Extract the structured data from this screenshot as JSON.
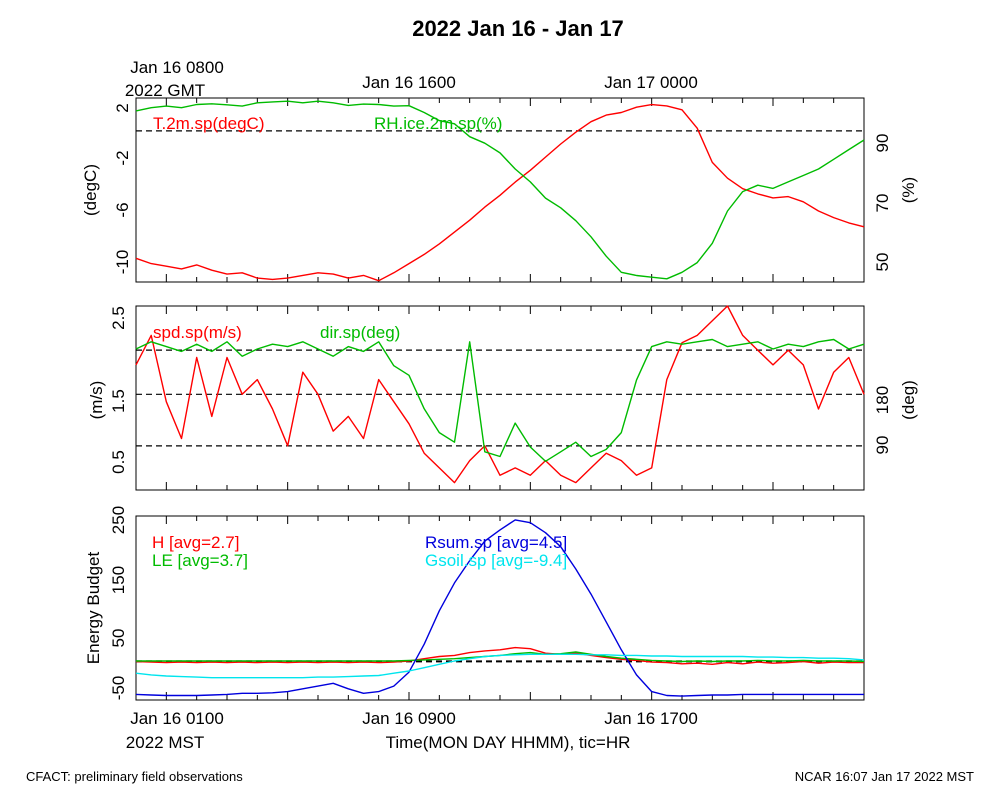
{
  "title": "2022 Jan 16 - Jan 17",
  "gmt_axis": {
    "ticks": [
      {
        "label": "Jan 16 0800",
        "sub": "2022 GMT"
      },
      {
        "label": "Jan 16 1600",
        "sub": ""
      },
      {
        "label": "Jan 17 0000",
        "sub": ""
      }
    ]
  },
  "mst_axis": {
    "ticks": [
      {
        "label": "Jan 16 0100",
        "sub": "2022 MST"
      },
      {
        "label": "Jan 16 0900",
        "sub": ""
      },
      {
        "label": "Jan 16 1700",
        "sub": ""
      }
    ],
    "xlabel": "Time(MON DAY HHMM), tic=HR"
  },
  "footer": {
    "left": "CFACT: preliminary field observations",
    "right": "NCAR 16:07 Jan 17 2022 MST"
  },
  "chart_data": [
    {
      "type": "line",
      "id": "temp-rh",
      "x_hours_mst": [
        0.0,
        0.5,
        1.0,
        1.5,
        2.0,
        2.5,
        3.0,
        3.5,
        4.0,
        4.5,
        5.0,
        5.5,
        6.0,
        6.5,
        7.0,
        7.5,
        8.0,
        8.5,
        9.0,
        9.5,
        10.0,
        10.5,
        11.0,
        11.5,
        12.0,
        12.5,
        13.0,
        13.5,
        14.0,
        14.5,
        15.0,
        15.5,
        16.0,
        16.5,
        17.0,
        17.5,
        18.0,
        18.5,
        19.0,
        19.5,
        20.0,
        20.5,
        21.0,
        21.5,
        22.0,
        22.5,
        23.0,
        23.5,
        24.0
      ],
      "ylabel_left": "(degC)",
      "ylabel_right": "(%)",
      "yticks_left": [
        "2",
        "-2",
        "-6",
        "-10"
      ],
      "yticks_right": [
        "90",
        "70",
        "50"
      ],
      "series": [
        {
          "name": "T.2m.sp(degC)",
          "color": "#ff0000",
          "axis": "left",
          "values": [
            -9.7,
            -10.1,
            -10.3,
            -10.5,
            -10.2,
            -10.6,
            -10.9,
            -10.8,
            -11.2,
            -11.3,
            -11.2,
            -11.0,
            -10.8,
            -10.9,
            -11.2,
            -11.0,
            -11.4,
            -10.8,
            -10.1,
            -9.4,
            -8.6,
            -7.7,
            -6.8,
            -5.8,
            -4.9,
            -3.9,
            -3.0,
            -2.0,
            -1.0,
            -0.1,
            0.7,
            1.2,
            1.4,
            1.8,
            2.0,
            1.9,
            1.6,
            0.2,
            -2.4,
            -3.6,
            -4.4,
            -4.8,
            -5.1,
            -5.0,
            -5.4,
            -6.1,
            -6.6,
            -7.0,
            -7.3
          ]
        },
        {
          "name": "RH.ice.2m.sp(%)",
          "color": "#00bb00",
          "axis": "right",
          "values": [
            97.0,
            98.0,
            98.5,
            98.0,
            99.0,
            99.2,
            98.9,
            98.5,
            99.5,
            99.8,
            100.0,
            99.5,
            100.0,
            99.5,
            98.7,
            99.1,
            99.0,
            98.5,
            98.6,
            96.5,
            94.0,
            93.0,
            89.0,
            87.0,
            84.0,
            79.0,
            75.0,
            70.0,
            67.0,
            63.0,
            58.0,
            52.0,
            47.0,
            46.0,
            45.5,
            45.0,
            47.0,
            50.0,
            56.0,
            66.0,
            72.0,
            74.0,
            73.0,
            75.0,
            77.0,
            79.0,
            82.0,
            85.0,
            88.0
          ]
        }
      ],
      "reference_lines": {
        "left": [
          0.0
        ]
      }
    },
    {
      "type": "line",
      "id": "wind",
      "x_hours_mst": [
        0.0,
        0.5,
        1.0,
        1.5,
        2.0,
        2.5,
        3.0,
        3.5,
        4.0,
        4.5,
        5.0,
        5.5,
        6.0,
        6.5,
        7.0,
        7.5,
        8.0,
        8.5,
        9.0,
        9.5,
        10.0,
        10.5,
        11.0,
        11.5,
        12.0,
        12.5,
        13.0,
        13.5,
        14.0,
        14.5,
        15.0,
        15.5,
        16.0,
        16.5,
        17.0,
        17.5,
        18.0,
        18.5,
        19.0,
        19.5,
        20.0,
        20.5,
        21.0,
        21.5,
        22.0,
        22.5,
        23.0,
        23.5,
        24.0
      ],
      "ylabel_left": "(m/s)",
      "ylabel_right": "(deg)",
      "yticks_left": [
        "2.5",
        "1.5",
        "0.5"
      ],
      "yticks_right": [
        "180",
        "90"
      ],
      "series": [
        {
          "name": "spd.sp(m/s)",
          "color": "#ff0000",
          "axis": "left",
          "values": [
            1.8,
            2.2,
            1.3,
            0.8,
            1.9,
            1.1,
            1.9,
            1.4,
            1.6,
            1.2,
            0.7,
            1.7,
            1.4,
            0.9,
            1.1,
            0.8,
            1.6,
            1.3,
            1.0,
            0.6,
            0.4,
            0.2,
            0.5,
            0.7,
            0.3,
            0.4,
            0.3,
            0.5,
            0.3,
            0.2,
            0.4,
            0.6,
            0.5,
            0.3,
            0.4,
            1.6,
            2.1,
            2.2,
            2.4,
            2.8,
            2.2,
            2.0,
            1.8,
            2.0,
            1.8,
            1.2,
            1.7,
            1.9,
            1.4
          ]
        },
        {
          "name": "dir.sp(deg)",
          "color": "#00bb00",
          "axis": "right",
          "values": [
            255,
            270,
            260,
            250,
            265,
            250,
            270,
            240,
            255,
            265,
            260,
            270,
            255,
            240,
            260,
            250,
            270,
            220,
            200,
            130,
            80,
            60,
            270,
            40,
            30,
            100,
            50,
            20,
            40,
            60,
            30,
            45,
            80,
            190,
            260,
            270,
            265,
            270,
            275,
            260,
            265,
            270,
            255,
            265,
            260,
            270,
            275,
            255,
            265
          ]
        }
      ],
      "reference_lines": {
        "left": [
          2.0,
          1.4,
          0.7
        ]
      }
    },
    {
      "type": "line",
      "id": "energy",
      "x_hours_mst": [
        0.0,
        0.5,
        1.0,
        1.5,
        2.0,
        2.5,
        3.0,
        3.5,
        4.0,
        4.5,
        5.0,
        5.5,
        6.0,
        6.5,
        7.0,
        7.5,
        8.0,
        8.5,
        9.0,
        9.5,
        10.0,
        10.5,
        11.0,
        11.5,
        12.0,
        12.5,
        13.0,
        13.5,
        14.0,
        14.5,
        15.0,
        15.5,
        16.0,
        16.5,
        17.0,
        17.5,
        18.0,
        18.5,
        19.0,
        19.5,
        20.0,
        20.5,
        21.0,
        21.5,
        22.0,
        22.5,
        23.0,
        23.5,
        24.0
      ],
      "ylabel_left": "Energy Budget",
      "yticks_left": [
        "250",
        "150",
        "50",
        "-50"
      ],
      "series": [
        {
          "name": "H [avg=2.7]",
          "color": "#ff0000",
          "axis": "left",
          "values": [
            -1,
            -2,
            -3,
            -2,
            -3,
            -2,
            -3,
            -2,
            -3,
            -2,
            -3,
            -2,
            -3,
            -2,
            -3,
            -2,
            -3,
            -2,
            0,
            4,
            8,
            10,
            15,
            18,
            20,
            24,
            22,
            14,
            12,
            14,
            10,
            6,
            3,
            1,
            -2,
            -3,
            -5,
            -4,
            -6,
            -3,
            -5,
            -2,
            -4,
            -3,
            -1,
            -4,
            -2,
            -3,
            -3
          ]
        },
        {
          "name": "LE [avg=3.7]",
          "color": "#00bb00",
          "axis": "left",
          "values": [
            0,
            0,
            0,
            0,
            0,
            0,
            0,
            0,
            0,
            0,
            0,
            0,
            0,
            0,
            0,
            0,
            0,
            0,
            1,
            2,
            3,
            4,
            6,
            8,
            10,
            13,
            15,
            12,
            13,
            16,
            12,
            8,
            5,
            3,
            1,
            0,
            -1,
            0,
            -1,
            0,
            0,
            1,
            0,
            0,
            1,
            0,
            0,
            0,
            -1
          ]
        },
        {
          "name": "Rsum.sp [avg=4.5]",
          "color": "#0000dd",
          "axis": "left",
          "values": [
            -60,
            -61,
            -62,
            -62,
            -62,
            -61,
            -60,
            -58,
            -58,
            -57,
            -55,
            -50,
            -45,
            -40,
            -50,
            -58,
            -55,
            -45,
            -20,
            30,
            90,
            140,
            180,
            215,
            235,
            253,
            248,
            230,
            205,
            165,
            120,
            70,
            20,
            -25,
            -55,
            -62,
            -63,
            -62,
            -61,
            -61,
            -60,
            -60,
            -60,
            -60,
            -60,
            -60,
            -60,
            -60,
            -60
          ]
        },
        {
          "name": "Gsoil.sp [avg=-9.4]",
          "color": "#00e5ee",
          "axis": "left",
          "values": [
            -22,
            -25,
            -27,
            -28,
            -29,
            -30,
            -30,
            -30,
            -30,
            -30,
            -30,
            -30,
            -29,
            -29,
            -28,
            -27,
            -26,
            -22,
            -18,
            -12,
            -6,
            0,
            4,
            8,
            10,
            11,
            12,
            12,
            12,
            12,
            11,
            11,
            10,
            10,
            9,
            9,
            8,
            8,
            8,
            8,
            8,
            7,
            7,
            6,
            6,
            5,
            5,
            4,
            2
          ]
        }
      ],
      "reference_lines": {
        "left": [
          0.0,
          -1.5
        ]
      }
    }
  ]
}
